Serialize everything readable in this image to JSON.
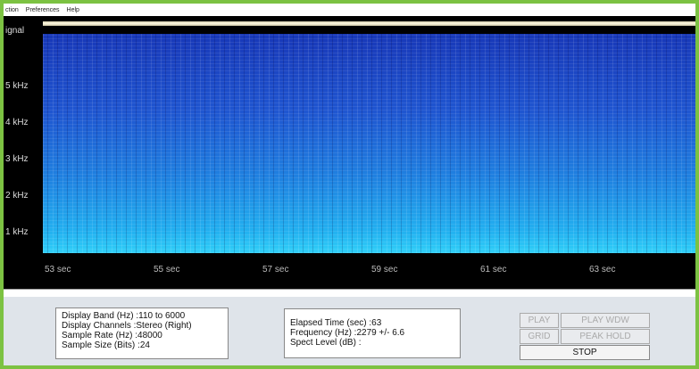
{
  "menu": [
    "ction",
    "Preferences",
    "Help"
  ],
  "signal_label": "ignal",
  "frequency_labels": [
    "5 kHz",
    "4 kHz",
    "3 kHz",
    "2 kHz",
    "1 kHz"
  ],
  "time_labels": [
    "53 sec",
    "55 sec",
    "57 sec",
    "59 sec",
    "61 sec",
    "63 sec"
  ],
  "info_left": {
    "rows": [
      {
        "label": "Display Band (Hz) :",
        "value": "110 to 6000"
      },
      {
        "label": "Display Channels :",
        "value": "Stereo (Right)"
      },
      {
        "label": "Sample Rate (Hz) :",
        "value": "48000"
      },
      {
        "label": "Sample Size (Bits) :",
        "value": "24"
      }
    ]
  },
  "info_right": {
    "rows": [
      {
        "label": "Elapsed Time (sec) :",
        "value": "63"
      },
      {
        "label": "Frequency (Hz) :",
        "value": "2279 +/- 6.6"
      },
      {
        "label": "Spect Level (dB) :"
      }
    ]
  },
  "buttons": [
    "PLAY",
    "PLAY WDW",
    "GRID",
    "PEAK HOLD",
    "STOP"
  ]
}
